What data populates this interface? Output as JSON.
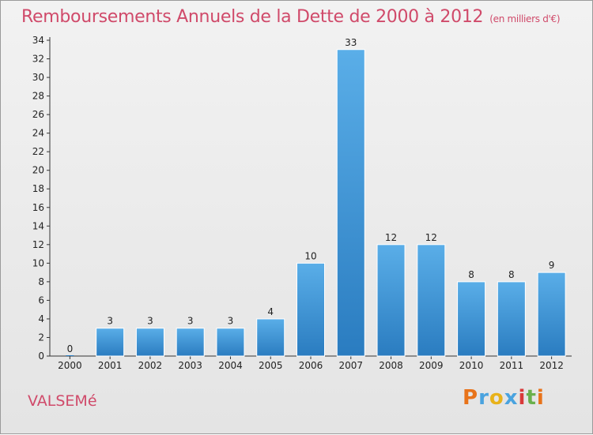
{
  "header": {
    "title": "Remboursements Annuels de la Dette de 2000 à 2012",
    "unit": "(en milliers d'€)"
  },
  "footer": {
    "commune": "VALSEMé",
    "logo": "Proxiti",
    "logo_colors": [
      "#e8731a",
      "#4aa3df",
      "#e8b21a",
      "#4aa3df",
      "#d93a3a",
      "#6ab04c",
      "#e8731a"
    ]
  },
  "colors": {
    "bar_top": "#5aaee8",
    "bar_bottom": "#2a7cc0",
    "accent": "#d04a6a"
  },
  "chart_data": {
    "type": "bar",
    "title": "Remboursements Annuels de la Dette de 2000 à 2012",
    "subtitle": "(en milliers d'€)",
    "categories": [
      "2000",
      "2001",
      "2002",
      "2003",
      "2004",
      "2005",
      "2006",
      "2007",
      "2008",
      "2009",
      "2010",
      "2011",
      "2012"
    ],
    "values": [
      0,
      3,
      3,
      3,
      3,
      4,
      10,
      33,
      12,
      12,
      8,
      8,
      9
    ],
    "ylim": [
      0,
      34
    ],
    "yticks": [
      0,
      2,
      4,
      6,
      8,
      10,
      12,
      14,
      16,
      18,
      20,
      22,
      24,
      26,
      28,
      30,
      32,
      34
    ],
    "grid": false,
    "data_labels": true
  }
}
